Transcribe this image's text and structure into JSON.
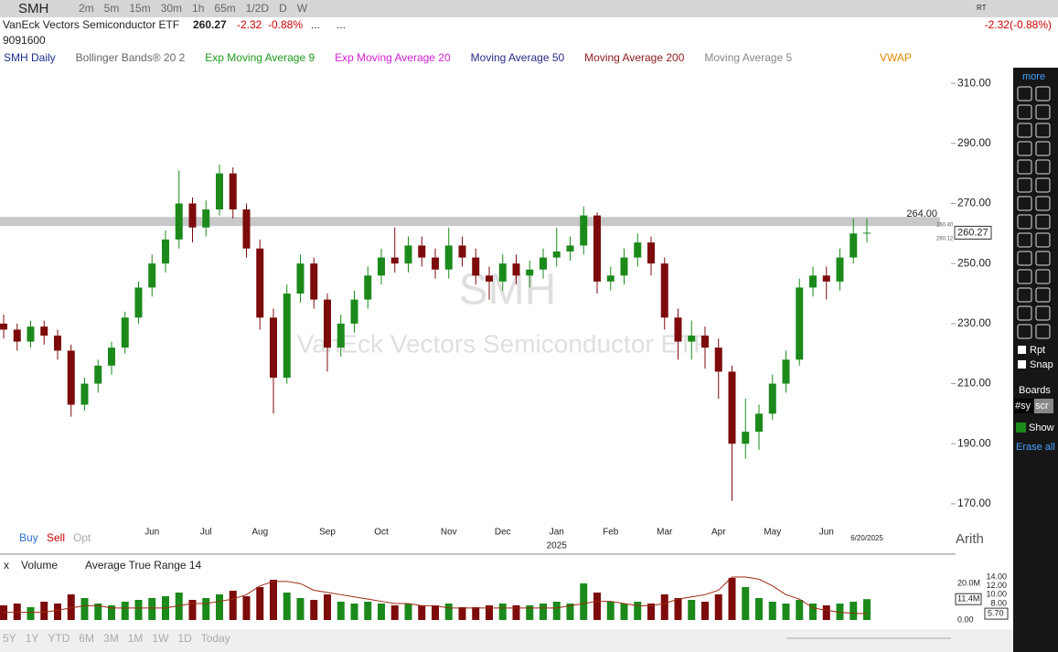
{
  "toolbar": {
    "symbol": "SMH",
    "intervals": [
      "2m",
      "5m",
      "15m",
      "30m",
      "1h",
      "65m",
      "1/2D",
      "D",
      "W"
    ],
    "badge": "RT"
  },
  "quote": {
    "name": "VanEck Vectors Semiconductor ETF",
    "last": "260.27",
    "change": "-2.32",
    "change_pct": "-0.88%",
    "more": [
      "...",
      "..."
    ],
    "volume": "9091600",
    "summary": "-2.32(-0.88%)"
  },
  "indicators": [
    {
      "name": "SMH Daily",
      "color": "#1c2f8c"
    },
    {
      "name": "Bollinger Bands® 20 2",
      "color": "#666666"
    },
    {
      "name": "Exp Moving Average 9",
      "color": "#1f9a1f"
    },
    {
      "name": "Exp Moving Average 20",
      "color": "#d21fd2"
    },
    {
      "name": "Moving Average 50",
      "color": "#2a2a8a"
    },
    {
      "name": "Moving Average 200",
      "color": "#8b1a1a"
    },
    {
      "name": "Moving Average 5",
      "color": "#888888"
    },
    {
      "name": "VWAP",
      "color": "#e08a00"
    }
  ],
  "chart_data": {
    "type": "candlestick",
    "watermark": [
      "SMH",
      "VanEck Vectors Semiconductor ETF"
    ],
    "categories": [
      null,
      null,
      null,
      null,
      null,
      null,
      null,
      null,
      null,
      null,
      null,
      "Jun",
      null,
      null,
      null,
      "Jul",
      null,
      null,
      null,
      "Aug",
      null,
      null,
      null,
      null,
      "Sep",
      null,
      null,
      null,
      "Oct",
      null,
      null,
      null,
      null,
      "Nov",
      null,
      null,
      null,
      "Dec",
      null,
      null,
      null,
      "Jan",
      null,
      null,
      null,
      "Feb",
      null,
      null,
      null,
      "Mar",
      null,
      null,
      null,
      "Apr",
      null,
      null,
      null,
      "May",
      null,
      null,
      null,
      "Jun",
      null,
      null,
      null
    ],
    "open": [
      230,
      228,
      224,
      229,
      226,
      221,
      203,
      210,
      216,
      222,
      232,
      242,
      250,
      258,
      270,
      262,
      268,
      280,
      268,
      255,
      232,
      212,
      240,
      250,
      238,
      222,
      230,
      238,
      246,
      252,
      250,
      256,
      252,
      248,
      256,
      252,
      246,
      244,
      250,
      246,
      248,
      252,
      254,
      256,
      266,
      244,
      246,
      252,
      257,
      250,
      232,
      224,
      226,
      222,
      214,
      190,
      194,
      200,
      210,
      218,
      242,
      246,
      244,
      252,
      260
    ],
    "high": [
      233,
      230,
      231,
      231,
      228,
      223,
      212,
      218,
      224,
      234,
      244,
      253,
      261,
      281,
      272,
      271,
      283,
      282,
      270,
      258,
      235,
      243,
      253,
      252,
      240,
      233,
      241,
      249,
      255,
      262,
      259,
      259,
      255,
      262,
      259,
      255,
      249,
      253,
      253,
      251,
      255,
      262,
      259,
      269,
      267,
      249,
      255,
      260,
      259,
      252,
      235,
      231,
      229,
      225,
      216,
      205,
      203,
      213,
      221,
      245,
      249,
      249,
      255,
      265,
      265
    ],
    "low": [
      225,
      221,
      222,
      223,
      218,
      199,
      201,
      207,
      213,
      220,
      230,
      239,
      247,
      255,
      257,
      259,
      266,
      265,
      252,
      228,
      200,
      210,
      237,
      235,
      214,
      219,
      227,
      235,
      243,
      247,
      247,
      249,
      245,
      245,
      249,
      243,
      238,
      241,
      243,
      242,
      245,
      249,
      251,
      253,
      240,
      241,
      243,
      249,
      246,
      228,
      218,
      218,
      215,
      205,
      171,
      185,
      188,
      198,
      207,
      216,
      239,
      238,
      241,
      250,
      257
    ],
    "close": [
      228,
      224,
      229,
      226,
      221,
      203,
      210,
      216,
      222,
      232,
      242,
      250,
      258,
      270,
      262,
      268,
      280,
      268,
      255,
      232,
      212,
      240,
      250,
      238,
      222,
      230,
      238,
      246,
      252,
      250,
      256,
      252,
      248,
      256,
      252,
      246,
      244,
      250,
      246,
      248,
      252,
      254,
      256,
      266,
      244,
      246,
      252,
      257,
      250,
      232,
      224,
      226,
      222,
      214,
      190,
      194,
      200,
      210,
      218,
      242,
      246,
      244,
      252,
      260,
      260.27
    ],
    "up_color": "#1b8a1b",
    "down_color": "#7d0b0b",
    "ylim": [
      164.2,
      314.9
    ],
    "yticks": [
      {
        "value": 310,
        "label": "310.00"
      },
      {
        "value": 290,
        "label": "290.00"
      },
      {
        "value": 270,
        "label": "270.00"
      },
      {
        "value": 250,
        "label": "250.00"
      },
      {
        "value": 230,
        "label": "230.00"
      },
      {
        "value": 210,
        "label": "210.00"
      },
      {
        "value": 190,
        "label": "190.00"
      },
      {
        "value": 170,
        "label": "170.00"
      }
    ],
    "level": {
      "value": 264,
      "label": "264.00"
    },
    "last_tag": {
      "value": 260.27,
      "label": "260.27"
    },
    "bid_ask": [
      {
        "value": 260.4,
        "label": "260.40"
      },
      {
        "value": 260.12,
        "label": "260.12"
      }
    ],
    "year_label": "2025",
    "date_label": "6/20/2025",
    "scale_mode": "Arith"
  },
  "trade_buttons": [
    "Buy",
    "Sell",
    "Opt"
  ],
  "lower_pane": {
    "close": "x",
    "titles": [
      "Volume",
      "Average True Range 14"
    ],
    "volume": [
      8,
      9,
      7,
      10,
      9,
      14,
      12,
      9,
      8,
      10,
      11,
      12,
      13,
      15,
      11,
      12,
      14,
      16,
      13,
      18,
      22,
      15,
      12,
      11,
      14,
      10,
      9,
      10,
      9,
      8,
      9,
      8,
      8,
      9,
      7,
      7,
      8,
      9,
      8,
      8,
      9,
      10,
      9,
      20,
      15,
      10,
      9,
      10,
      9,
      14,
      12,
      11,
      10,
      14,
      23,
      18,
      12,
      10,
      9,
      11,
      9,
      8,
      9,
      10,
      11.4
    ],
    "volume_ylim": [
      0,
      26
    ],
    "volume_ticks": [
      {
        "value": 20,
        "label": "20.0M"
      },
      {
        "value": 0,
        "label": "0.00"
      }
    ],
    "volume_tag": {
      "value": 11.4,
      "label": "11.4M"
    },
    "atr": [
      6,
      6,
      6,
      6,
      6.5,
      7,
      7.5,
      7.5,
      7,
      7,
      7,
      7,
      7,
      7.5,
      8,
      8,
      8.5,
      9,
      10,
      12,
      13,
      13,
      12.5,
      11,
      10.5,
      10,
      9.5,
      9,
      8.5,
      8,
      8,
      7.5,
      7.5,
      7,
      7,
      7,
      7,
      7,
      7,
      7,
      7,
      7,
      7.5,
      8,
      8.5,
      8.5,
      8,
      7.5,
      7.5,
      8,
      9,
      9.5,
      10,
      11,
      14,
      14,
      13.5,
      12,
      10,
      9,
      7,
      6.5,
      6,
      5.8,
      5.7
    ],
    "atr_color": "#9a2a10",
    "atr_ylim": [
      3.86,
      15.03
    ],
    "atr_ticks": [
      {
        "value": 14,
        "label": "14.00"
      },
      {
        "value": 12,
        "label": "12.00"
      },
      {
        "value": 10,
        "label": "10.00"
      },
      {
        "value": 8,
        "label": "8.00"
      }
    ],
    "atr_tag": {
      "value": 5.7,
      "label": "5.70"
    }
  },
  "ranges": [
    "5Y",
    "1Y",
    "YTD",
    "6M",
    "3M",
    "1M",
    "1W",
    "1D",
    "Today"
  ],
  "sidebar": {
    "more": "more",
    "toggles": [
      "Rpt",
      "Snap"
    ],
    "boards": "Boards",
    "tabs": [
      "#sy",
      "scr"
    ],
    "show": "Show",
    "erase": "Erase all"
  }
}
